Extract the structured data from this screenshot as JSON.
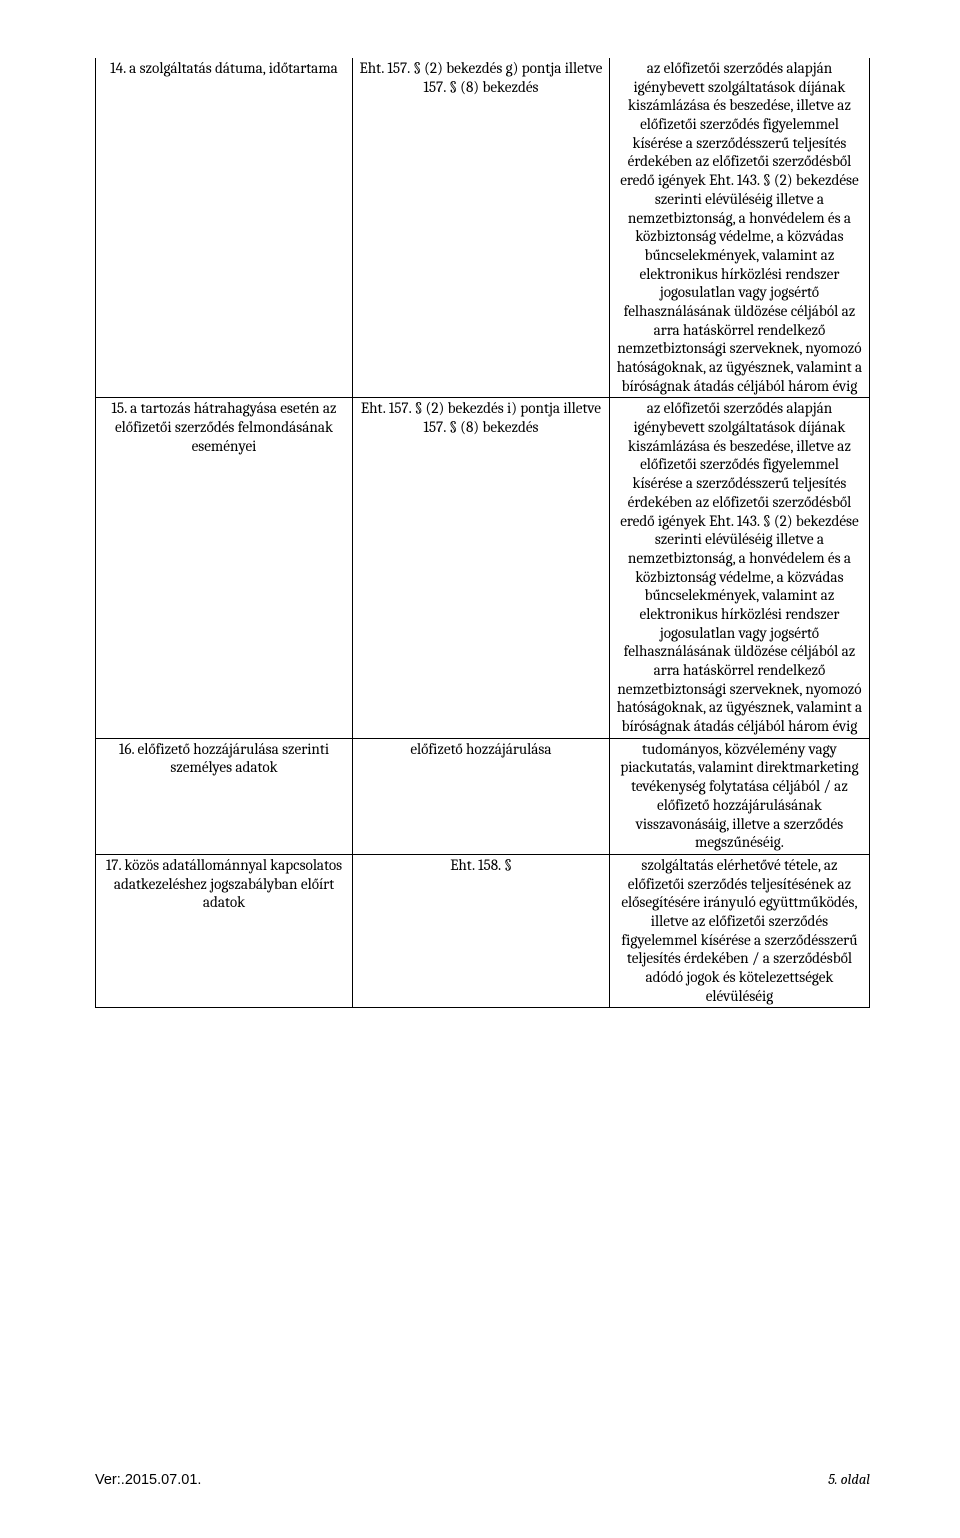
{
  "rows": [
    {
      "c1": "14. a szolgáltatás dátuma, időtartama",
      "c2": "Eht. 157. § (2) bekezdés g) pontja illetve 157. § (8) bekezdés",
      "c3": "az előfizetői szerződés alapján igénybevett szolgáltatások díjának kiszámlázása és beszedése, illetve az előfizetői szerződés figyelemmel kísérése a szerződésszerű teljesítés érdekében az előfizetői szerződésből eredő igények Eht. 143. § (2) bekezdése szerinti elévüléséig illetve a nemzetbiztonság, a honvédelem és a közbiztonság védelme, a közvádas bűncselekmények, valamint az elektronikus hírközlési rendszer jogosulatlan vagy jogsértő felhasználásának üldözése céljából az arra hatáskörrel rendelkező nemzetbiztonsági szerveknek, nyomozó hatóságoknak, az ügyésznek, valamint a bíróságnak átadás céljából három évig"
    },
    {
      "c1": "15. a tartozás hátrahagyása esetén az előfizetői szerződés felmondásának eseményei",
      "c2": "Eht. 157. § (2) bekezdés i) pontja illetve 157. § (8) bekezdés",
      "c3": "az előfizetői szerződés alapján igénybevett szolgáltatások díjának kiszámlázása és beszedése, illetve az előfizetői szerződés figyelemmel kísérése a szerződésszerű teljesítés érdekében az előfizetői szerződésből eredő igények Eht. 143. § (2) bekezdése szerinti elévüléséig illetve a nemzetbiztonság, a honvédelem és a közbiztonság védelme, a közvádas bűncselekmények, valamint az elektronikus hírközlési rendszer jogosulatlan vagy jogsértő felhasználásának üldözése céljából az arra hatáskörrel rendelkező nemzetbiztonsági szerveknek, nyomozó hatóságoknak, az ügyésznek, valamint a bíróságnak átadás céljából három évig"
    },
    {
      "c1": "16. előfizető hozzájárulása szerinti személyes adatok",
      "c2": "előfizető hozzájárulása",
      "c3": "tudományos, közvélemény vagy piackutatás, valamint direktmarketing tevékenység folytatása céljából / az előfizető hozzájárulásának visszavonásáig, illetve a szerződés megszűnéséig."
    },
    {
      "c1": "17. közös adatállománnyal kapcsolatos adatkezeléshez jogszabályban előírt adatok",
      "c2": "Eht. 158. §",
      "c3": "szolgáltatás elérhetővé tétele, az előfizetői szerződés teljesítésének az elősegítésére irányuló együttműködés, illetve az előfizetői szerződés figyelemmel kísérése a szerződésszerű teljesítés érdekében / a szerződésből adódó jogok és kötelezettségek elévüléséig"
    }
  ],
  "footer": {
    "left": "Ver:.2015.07.01.",
    "right": "5. oldal"
  }
}
